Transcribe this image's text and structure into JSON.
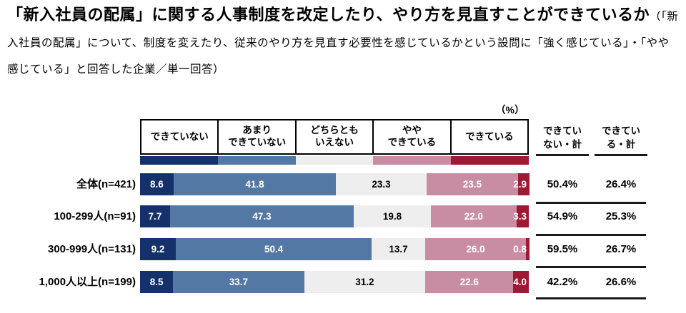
{
  "header": {
    "title_main": "「新入社員の配属」に関する人事制度を改定したり、やり方を見直すことができているか",
    "title_paren": "（「新入社員の配属」について、制度を変えたり、従来のやり方を見直す必要性を感じているかという設問に「強く感じている」・「やや感じている」と回答した企業／単一回答）"
  },
  "chart_data": {
    "type": "bar",
    "stacked": true,
    "orientation": "horizontal",
    "unit_label": "（%）",
    "x_range": [
      0,
      100
    ],
    "grid": false,
    "legend_position": "top",
    "legend": [
      {
        "label": "できていない",
        "color": "#14316b",
        "text_color": "#ffffff"
      },
      {
        "label": "あまり\nできていない",
        "color": "#5478a4",
        "text_color": "#ffffff"
      },
      {
        "label": "どちらとも\nいえない",
        "color": "#eeeeee",
        "text_color": "#000000"
      },
      {
        "label": "やや\nできている",
        "color": "#c98da3",
        "text_color": "#ffffff"
      },
      {
        "label": "できている",
        "color": "#9e1933",
        "text_color": "#ffffff"
      }
    ],
    "summary_headers": [
      "できてい\nない・計",
      "できてい\nる・計"
    ],
    "rows": [
      {
        "label": "全体(n=421)",
        "values": [
          "8.6",
          "41.8",
          "23.3",
          "23.5",
          "2.9"
        ],
        "totals": [
          "50.4%",
          "26.4%"
        ]
      },
      {
        "label": "100-299人(n=91)",
        "values": [
          "7.7",
          "47.3",
          "19.8",
          "22.0",
          "3.3"
        ],
        "totals": [
          "54.9%",
          "25.3%"
        ]
      },
      {
        "label": "300-999人(n=131)",
        "values": [
          "9.2",
          "50.4",
          "13.7",
          "26.0",
          "0.8"
        ],
        "totals": [
          "59.5%",
          "26.7%"
        ]
      },
      {
        "label": "1,000人以上(n=199)",
        "values": [
          "8.5",
          "33.7",
          "31.2",
          "22.6",
          "4.0"
        ],
        "totals": [
          "42.2%",
          "26.6%"
        ]
      }
    ]
  }
}
